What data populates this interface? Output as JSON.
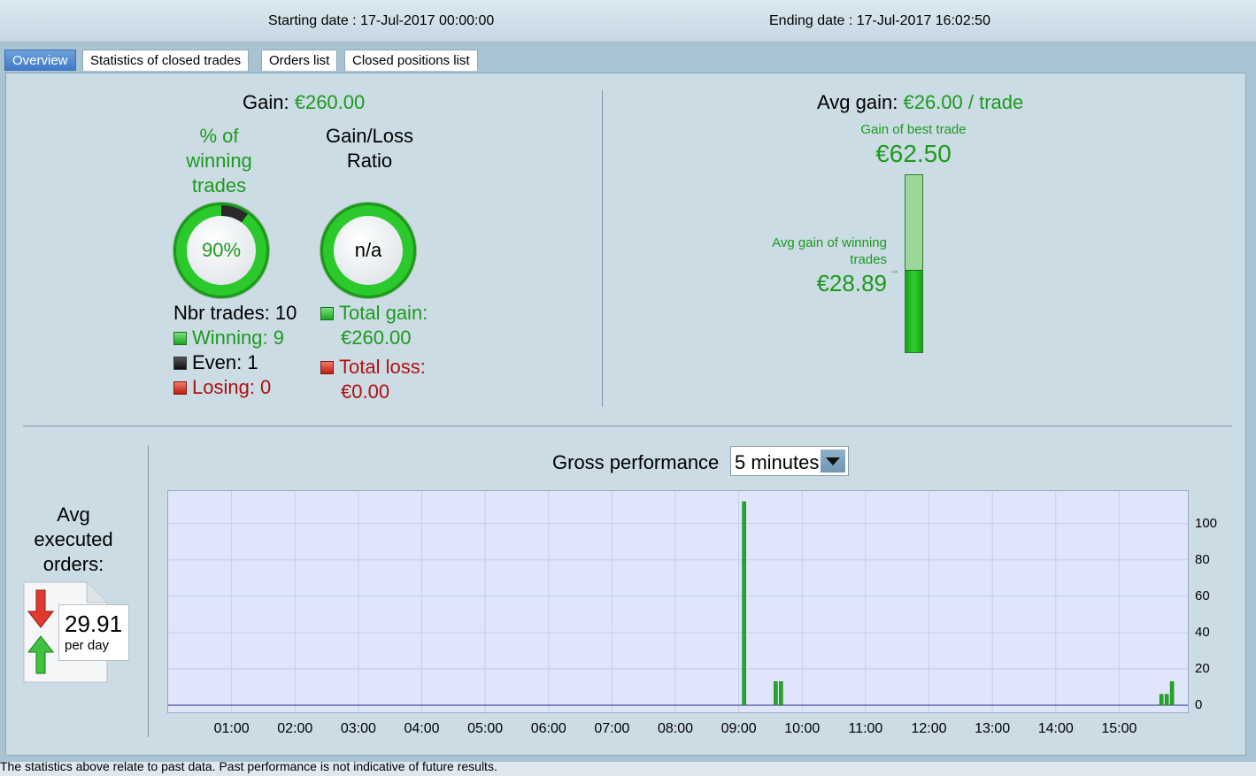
{
  "header": {
    "starting_date": "Starting date : 17-Jul-2017 00:00:00",
    "ending_date": "Ending date : 17-Jul-2017 16:02:50"
  },
  "tabs": [
    {
      "label": "Overview",
      "active": true
    },
    {
      "label": "Statistics of closed trades",
      "active": false
    },
    {
      "label": "Orders list",
      "active": false
    },
    {
      "label": "Closed positions list",
      "active": false
    }
  ],
  "overview": {
    "gain_label": "Gain:",
    "gain_value": "€260.00",
    "winning_title_lines": [
      "% of",
      "winning",
      "trades"
    ],
    "winning_pct": "90%",
    "winning_fraction": 0.9,
    "ratio_title_lines": [
      "Gain/Loss",
      "Ratio"
    ],
    "ratio_value": "n/a",
    "nbr_trades": "Nbr trades: 10",
    "winning": "Winning: 9",
    "even": "Even: 1",
    "losing": "Losing: 0",
    "total_gain_label": "Total gain:",
    "total_gain_value": "€260.00",
    "total_loss_label": "Total loss:",
    "total_loss_value": "€0.00"
  },
  "avg_gain": {
    "label": "Avg gain:",
    "value": "€26.00 / trade",
    "best_trade_label": "Gain of best trade",
    "best_trade_value": "€62.50",
    "winning_label_lines": [
      "Avg gain of winning",
      "trades"
    ],
    "winning_value": "€28.89",
    "winning_fraction_of_best": 0.462
  },
  "orders": {
    "title_lines": [
      "Avg",
      "executed",
      "orders:"
    ],
    "value": "29.91",
    "unit": "per day"
  },
  "performance": {
    "title": "Gross performance",
    "interval": "5 minutes"
  },
  "colors": {
    "gain": "#1d9a1d",
    "loss": "#b01010",
    "bar": "#22a822",
    "chart_bg": "#dfe6fb"
  },
  "footer": {
    "disclaimer": "The statistics above relate to past data. Past performance is not indicative of future results."
  },
  "chart_data": {
    "type": "bar",
    "x_ticks": [
      "01:00",
      "02:00",
      "03:00",
      "04:00",
      "05:00",
      "06:00",
      "07:00",
      "08:00",
      "09:00",
      "10:00",
      "11:00",
      "12:00",
      "13:00",
      "14:00",
      "15:00"
    ],
    "y_ticks": [
      "0",
      "20",
      "40",
      "60",
      "80",
      "100"
    ],
    "xlim": [
      "00:00",
      "16:05"
    ],
    "ylim": [
      0,
      112
    ],
    "grid": true,
    "bars": [
      {
        "x": "09:05",
        "y": 112
      },
      {
        "x": "09:35",
        "y": 13
      },
      {
        "x": "09:40",
        "y": 13
      },
      {
        "x": "15:40",
        "y": 6
      },
      {
        "x": "15:45",
        "y": 6
      },
      {
        "x": "15:50",
        "y": 13
      }
    ]
  }
}
